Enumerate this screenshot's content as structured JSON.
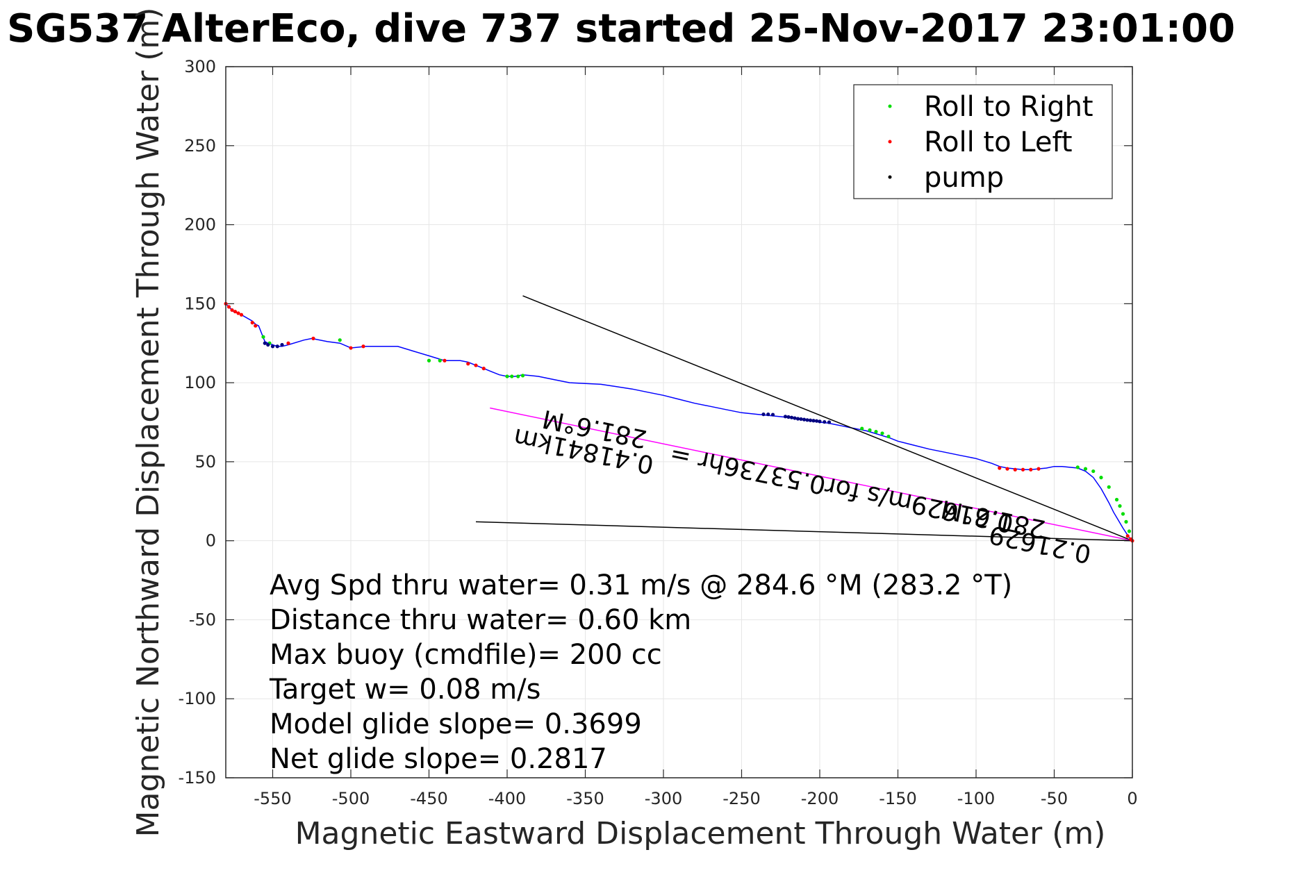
{
  "chart_data": {
    "type": "line",
    "title": "SG537 AlterEco, dive 737 started 25-Nov-2017 23:01:00",
    "xlabel": "Magnetic Eastward Displacement Through Water (m)",
    "ylabel": "Magnetic Northward Displacement Through Water (m)",
    "xlim": [
      -580,
      0
    ],
    "ylim": [
      -150,
      300
    ],
    "xticks": [
      -550,
      -500,
      -450,
      -400,
      -350,
      -300,
      -250,
      -200,
      -150,
      -100,
      -50,
      0
    ],
    "yticks": [
      -150,
      -100,
      -50,
      0,
      50,
      100,
      150,
      200,
      250,
      300
    ],
    "xtick_labels": [
      "-550",
      "-500",
      "-450",
      "-400",
      "-350",
      "-300",
      "-250",
      "-200",
      "-150",
      "-100",
      "-50",
      "0"
    ],
    "ytick_labels": [
      "-150",
      "-100",
      "-50",
      "0",
      "50",
      "100",
      "150",
      "200",
      "250",
      "300"
    ],
    "grid": true,
    "legend": {
      "placement": "top-right",
      "entries": [
        {
          "label": "Roll to Right",
          "color": "#00dd00"
        },
        {
          "label": "Roll to Left",
          "color": "#ff0000"
        },
        {
          "label": "pump",
          "color": "#000000"
        }
      ]
    },
    "track": {
      "color": "#0000ff",
      "x": [
        -580,
        -578,
        -575,
        -572,
        -570,
        -563,
        -561,
        -559,
        -557,
        -555,
        -553,
        -550,
        -547,
        -544,
        -540,
        -530,
        -525,
        -515,
        -507,
        -500,
        -490,
        -480,
        -470,
        -460,
        -450,
        -440,
        -430,
        -425,
        -420,
        -415,
        -410,
        -405,
        -400,
        -395,
        -390,
        -380,
        -370,
        -360,
        -350,
        -340,
        -330,
        -320,
        -310,
        -300,
        -290,
        -280,
        -270,
        -260,
        -250,
        -240,
        -235,
        -230,
        -225,
        -220,
        -215,
        -210,
        -205,
        -200,
        -195,
        -190,
        -185,
        -180,
        -175,
        -170,
        -165,
        -160,
        -155,
        -150,
        -140,
        -130,
        -120,
        -110,
        -100,
        -90,
        -85,
        -80,
        -75,
        -70,
        -65,
        -60,
        -55,
        -50,
        -45,
        -40,
        -35,
        -30,
        -25,
        -20,
        -15,
        -12,
        -9,
        -6,
        -4,
        -2,
        0
      ],
      "y": [
        150,
        148,
        145,
        144,
        143,
        139,
        137,
        136,
        131,
        126,
        125,
        124,
        123,
        123,
        124,
        127,
        128,
        126,
        125,
        122,
        123,
        123,
        123,
        120,
        117,
        114,
        114,
        113,
        111,
        109,
        107,
        105,
        104,
        104,
        105,
        104,
        102,
        100,
        99.5,
        99,
        97.5,
        96,
        94,
        92,
        89.5,
        87,
        85,
        83,
        81,
        80,
        79.5,
        79,
        78.5,
        78,
        77,
        76.5,
        76,
        75,
        74.5,
        73.5,
        72.5,
        71.5,
        70.5,
        69.5,
        68,
        66.5,
        65,
        63,
        60.5,
        58,
        56,
        54,
        52,
        49,
        47,
        46,
        45.5,
        45,
        45,
        45.5,
        46,
        47,
        47,
        46.5,
        46,
        44,
        40,
        33,
        24,
        18,
        13,
        8,
        5,
        2,
        0
      ]
    },
    "markers": {
      "roll_right": {
        "color": "#00dd00",
        "x": [
          -556,
          -552,
          -507,
          -450,
          -443,
          -400,
          -397,
          -393,
          -390,
          -173,
          -168,
          -164,
          -160,
          -156,
          -35,
          -30,
          -25,
          -20,
          -15,
          -10,
          -8,
          -6,
          -4,
          -2
        ],
        "y": [
          129,
          125,
          127,
          114,
          114,
          104,
          104,
          104,
          104.5,
          71,
          70,
          69,
          68,
          66,
          46.5,
          45.5,
          44,
          40,
          34,
          26,
          22,
          17,
          12,
          6
        ]
      },
      "roll_left": {
        "color": "#ff0000",
        "x": [
          -580,
          -578,
          -576,
          -574,
          -572,
          -570,
          -563,
          -561,
          -540,
          -524,
          -500,
          -492,
          -440,
          -425,
          -420,
          -415,
          -85,
          -80,
          -75,
          -70,
          -65,
          -60,
          -3,
          -1,
          0
        ],
        "y": [
          150,
          148,
          146,
          145,
          144,
          143,
          138,
          136,
          125,
          128,
          122,
          123,
          114,
          112,
          111,
          109,
          46,
          45.5,
          45,
          45,
          45,
          45.5,
          3,
          1,
          0
        ]
      },
      "pump": {
        "color": "#000080",
        "x": [
          -555,
          -553,
          -550,
          -547,
          -544,
          -236,
          -233,
          -230,
          -222,
          -220,
          -218,
          -216,
          -214,
          -212,
          -210,
          -208,
          -206,
          -204,
          -202,
          -200,
          -197,
          -194
        ],
        "y": [
          125,
          124,
          123,
          123,
          124,
          80,
          80,
          79.8,
          78.6,
          78.3,
          78,
          77.6,
          77.2,
          77,
          76.7,
          76.4,
          76.2,
          76,
          75.8,
          75.5,
          75.2,
          75
        ]
      }
    },
    "reference_lines": [
      {
        "name": "heading",
        "color": "#000000",
        "x": [
          -390,
          0
        ],
        "y": [
          155,
          0
        ]
      },
      {
        "name": "current",
        "color": "#ff00ff",
        "x": [
          -411,
          0
        ],
        "y": [
          84,
          0
        ]
      },
      {
        "name": "drift",
        "color": "#000000",
        "x": [
          -420,
          0
        ],
        "y": [
          12,
          0
        ]
      }
    ],
    "annotations": [
      {
        "text": "281.6°M",
        "x": -343,
        "y": 76,
        "angle": 191.6
      },
      {
        "text": "0.41841km",
        "x": -350,
        "y": 62,
        "angle": 191.6
      },
      {
        "text": "0.21629m/s for0.53736hr =",
        "x": -185,
        "y": 38,
        "angle": 191.6
      },
      {
        "text": "281.6°M",
        "x": -88,
        "y": 19,
        "angle": 191.6
      },
      {
        "text": "0.21629",
        "x": -58,
        "y": 3,
        "angle": 191.6
      }
    ],
    "stats": [
      "Avg Spd thru water=  0.31 m/s @ 284.6 °M (283.2 °T)",
      "Distance thru water=  0.60 km",
      "Max buoy (cmdfile)= 200 cc",
      "Target w= 0.08 m/s",
      "Model glide slope= 0.3699",
      "Net glide slope= 0.2817"
    ]
  }
}
